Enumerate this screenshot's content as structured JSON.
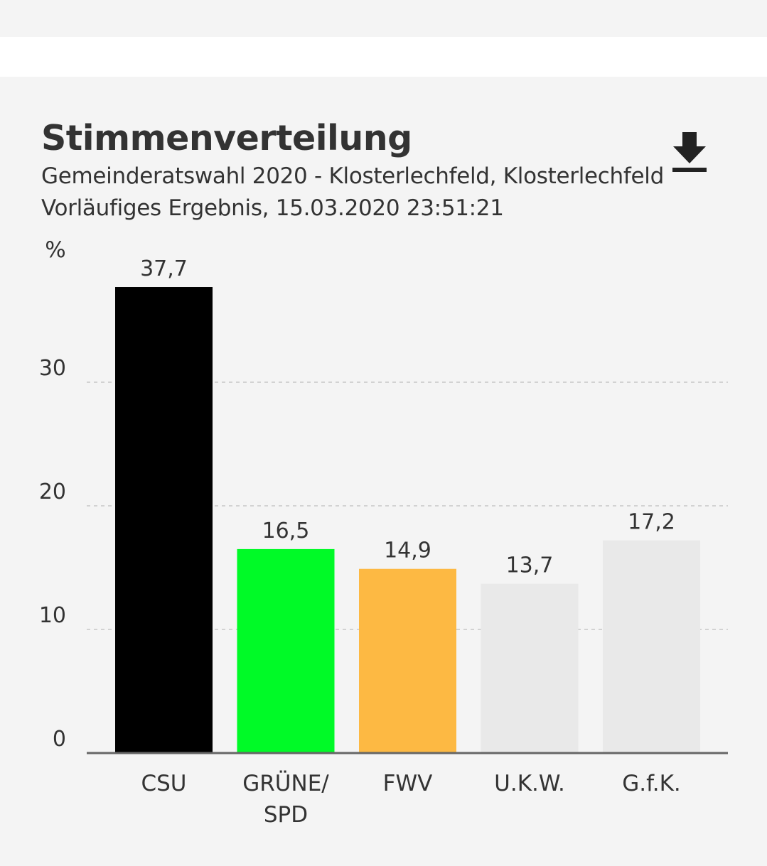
{
  "header": {
    "title": "Stimmenverteilung",
    "subtitle": "Gemeinderatswahl 2020 - Klosterlechfeld, Klosterlechfeld",
    "status": "Vorläufiges Ergebnis, 15.03.2020 23:51:21",
    "download_icon": "download-icon"
  },
  "chart_data": {
    "type": "bar",
    "ylabel": "%",
    "xlabel": "",
    "ylim": [
      0,
      37.7
    ],
    "yticks": [
      0,
      10,
      20,
      30
    ],
    "grid": true,
    "categories": [
      [
        "CSU"
      ],
      [
        "GRÜNE/",
        "SPD"
      ],
      [
        "FWV"
      ],
      [
        "U.K.W."
      ],
      [
        "G.f.K."
      ]
    ],
    "values": [
      37.7,
      16.5,
      14.9,
      13.7,
      17.2
    ],
    "value_labels": [
      "37,7",
      "16,5",
      "14,9",
      "13,7",
      "17,2"
    ],
    "colors": [
      "#000000",
      "#00fa27",
      "#fdb943",
      "#e9e9e9",
      "#e9e9e9"
    ]
  }
}
